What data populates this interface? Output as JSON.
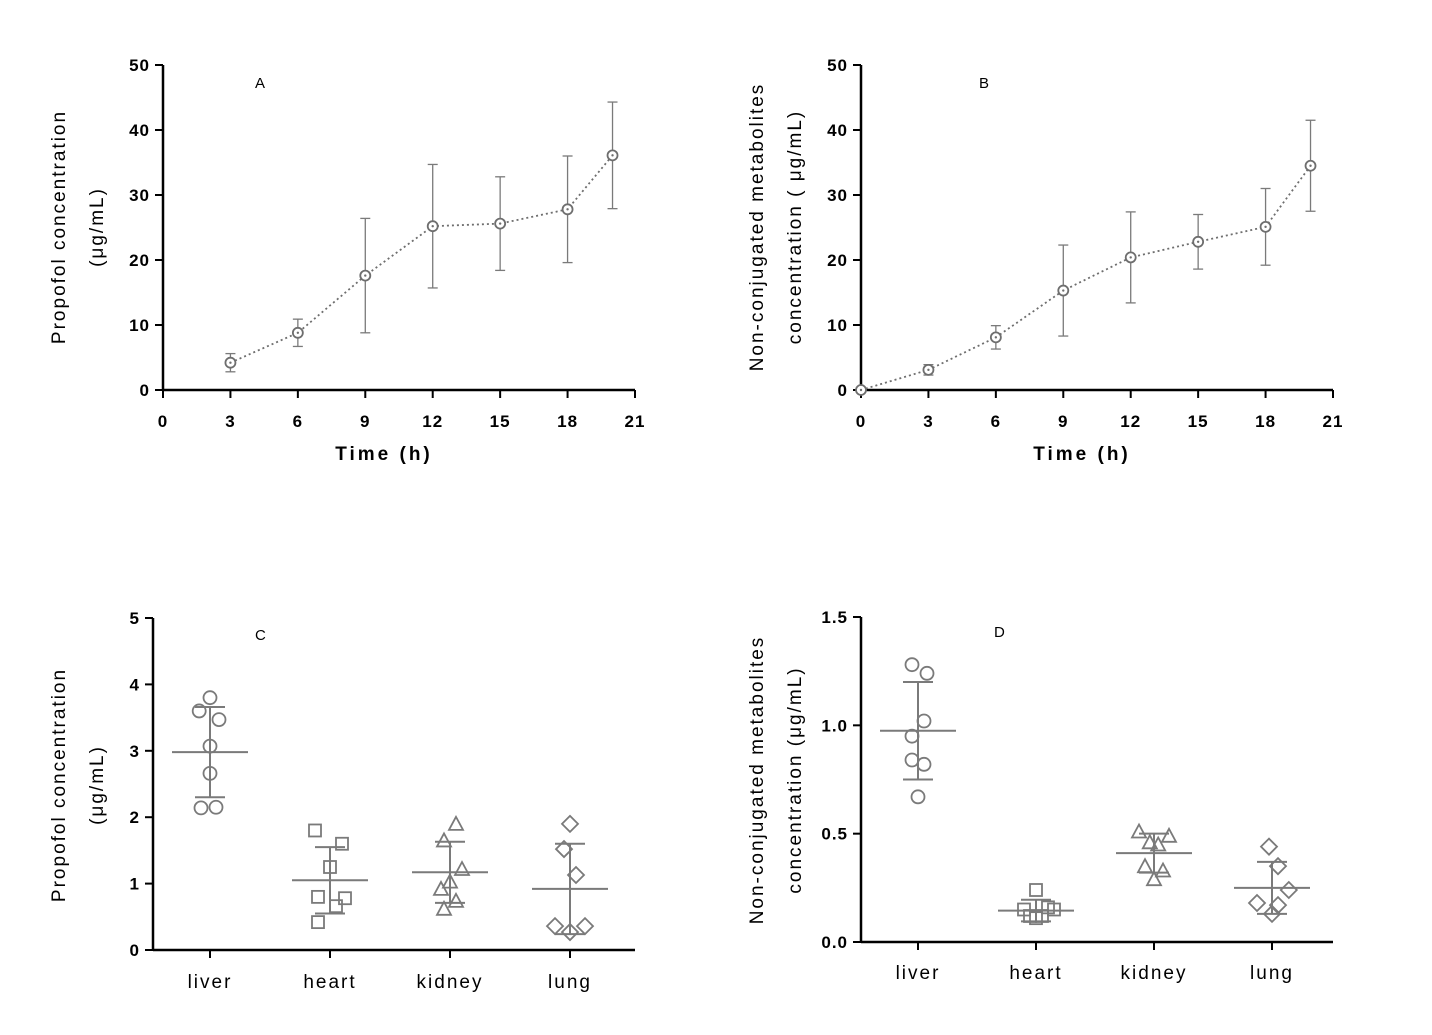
{
  "chart_data": [
    {
      "id": "A",
      "type": "line",
      "panel_label": "A",
      "xlabel": "Time (h)",
      "ylabel_lines": [
        "Propofol concentration",
        "(μg/mL)"
      ],
      "xlim": [
        0,
        21
      ],
      "ylim": [
        0,
        50
      ],
      "xticks": [
        "0",
        "3",
        "6",
        "9",
        "12",
        "15",
        "18",
        "21"
      ],
      "yticks": [
        "0",
        "10",
        "20",
        "30",
        "40",
        "50"
      ],
      "x": [
        3,
        6,
        9,
        12,
        15,
        18,
        20
      ],
      "values": [
        4.2,
        8.8,
        17.6,
        25.2,
        25.6,
        27.8,
        36.1
      ],
      "errors": [
        1.4,
        2.1,
        8.8,
        9.5,
        7.2,
        8.2,
        8.2
      ]
    },
    {
      "id": "B",
      "type": "line",
      "panel_label": "B",
      "xlabel": "Time (h)",
      "ylabel_lines": [
        "Non-conjugated metabolites",
        "concentration ( μg/mL)"
      ],
      "xlim": [
        0,
        21
      ],
      "ylim": [
        0,
        50
      ],
      "xticks": [
        "0",
        "3",
        "6",
        "9",
        "12",
        "15",
        "18",
        "21"
      ],
      "yticks": [
        "0",
        "10",
        "20",
        "30",
        "40",
        "50"
      ],
      "x": [
        0,
        3,
        6,
        9,
        12,
        15,
        18,
        20
      ],
      "values": [
        0,
        3.1,
        8.1,
        15.3,
        20.4,
        22.8,
        25.1,
        34.5
      ],
      "errors": [
        0.3,
        0.8,
        1.8,
        7.0,
        7.0,
        4.2,
        5.9,
        7.0
      ]
    },
    {
      "id": "C",
      "type": "scatter",
      "panel_label": "C",
      "xlabel": "",
      "ylabel_lines": [
        "Propofol concentration",
        "(μg/mL)"
      ],
      "ylim": [
        0,
        5
      ],
      "yticks": [
        "0",
        "1",
        "2",
        "3",
        "4",
        "5"
      ],
      "categories": [
        "liver",
        "heart",
        "kidney",
        "lung"
      ],
      "series": [
        {
          "name": "liver",
          "marker": "circle",
          "mean": 2.98,
          "sd": 0.68,
          "points": [
            [
              -0.18,
              3.6
            ],
            [
              0,
              3.8
            ],
            [
              0.15,
              3.47
            ],
            [
              0,
              3.07
            ],
            [
              0,
              2.66
            ],
            [
              -0.15,
              2.14
            ],
            [
              0.1,
              2.15
            ]
          ]
        },
        {
          "name": "heart",
          "marker": "square",
          "mean": 1.05,
          "sd": 0.5,
          "points": [
            [
              -0.25,
              1.8
            ],
            [
              0.2,
              1.6
            ],
            [
              0,
              1.25
            ],
            [
              -0.2,
              0.8
            ],
            [
              0.25,
              0.78
            ],
            [
              0.1,
              0.66
            ],
            [
              -0.2,
              0.42
            ]
          ]
        },
        {
          "name": "kidney",
          "marker": "triangle",
          "mean": 1.17,
          "sd": 0.46,
          "points": [
            [
              0.1,
              1.9
            ],
            [
              -0.1,
              1.65
            ],
            [
              0.2,
              1.22
            ],
            [
              0,
              1.03
            ],
            [
              -0.15,
              0.92
            ],
            [
              0.1,
              0.74
            ],
            [
              -0.1,
              0.62
            ]
          ]
        },
        {
          "name": "lung",
          "marker": "diamond",
          "mean": 0.92,
          "sd": 0.68,
          "points": [
            [
              0,
              1.9
            ],
            [
              -0.1,
              1.52
            ],
            [
              0.1,
              1.13
            ],
            [
              -0.25,
              0.36
            ],
            [
              0.25,
              0.36
            ],
            [
              0,
              0.27
            ]
          ]
        }
      ]
    },
    {
      "id": "D",
      "type": "scatter",
      "panel_label": "D",
      "xlabel": "",
      "ylabel_lines": [
        "Non-conjugated metabolites",
        "concentration (μg/mL)"
      ],
      "ylim": [
        0,
        1.5
      ],
      "yticks": [
        "0.0",
        "0.5",
        "1.0",
        "1.5"
      ],
      "categories": [
        "liver",
        "heart",
        "kidney",
        "lung"
      ],
      "series": [
        {
          "name": "liver",
          "marker": "circle",
          "mean": 0.975,
          "sd": 0.225,
          "points": [
            [
              -0.1,
              1.28
            ],
            [
              0.15,
              1.24
            ],
            [
              0.1,
              1.02
            ],
            [
              -0.1,
              0.95
            ],
            [
              -0.1,
              0.84
            ],
            [
              0.1,
              0.82
            ],
            [
              0,
              0.67
            ]
          ]
        },
        {
          "name": "heart",
          "marker": "square",
          "mean": 0.145,
          "sd": 0.05,
          "points": [
            [
              0,
              0.24
            ],
            [
              -0.2,
              0.15
            ],
            [
              0.2,
              0.16
            ],
            [
              0.3,
              0.15
            ],
            [
              -0.1,
              0.12
            ],
            [
              0.1,
              0.12
            ],
            [
              0,
              0.11
            ]
          ]
        },
        {
          "name": "kidney",
          "marker": "triangle",
          "mean": 0.41,
          "sd": 0.09,
          "points": [
            [
              -0.25,
              0.51
            ],
            [
              0.25,
              0.49
            ],
            [
              -0.07,
              0.46
            ],
            [
              0.07,
              0.45
            ],
            [
              -0.15,
              0.35
            ],
            [
              0.15,
              0.33
            ],
            [
              0,
              0.29
            ]
          ]
        },
        {
          "name": "lung",
          "marker": "diamond",
          "mean": 0.25,
          "sd": 0.12,
          "points": [
            [
              -0.05,
              0.44
            ],
            [
              0.1,
              0.35
            ],
            [
              0.28,
              0.24
            ],
            [
              -0.25,
              0.18
            ],
            [
              0.1,
              0.17
            ],
            [
              0,
              0.13
            ]
          ]
        }
      ]
    }
  ]
}
